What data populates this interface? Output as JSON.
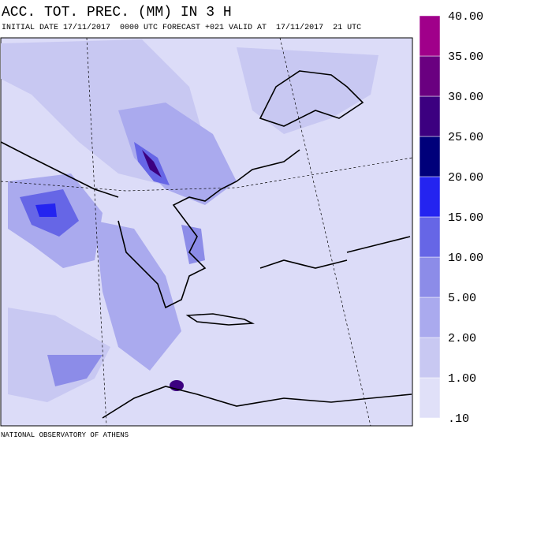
{
  "header": {
    "title": "ACC. TOT. PREC. (MM) IN 3 H",
    "subtitle": "INITIAL DATE 17/11/2017  0000 UTC FORECAST +021 VALID AT  17/11/2017  21 UTC"
  },
  "legend": {
    "levels": [
      ".10",
      "1.00",
      "2.00",
      "5.00",
      "10.00",
      "15.00",
      "20.00",
      "25.00",
      "30.00",
      "35.00",
      "40.00"
    ],
    "colors": [
      "#e0e0f8",
      "#c8c8f2",
      "#aaaaee",
      "#8c8ce8",
      "#6666e6",
      "#2424f0",
      "#00007a",
      "#3c0080",
      "#6a0080",
      "#a0008a"
    ]
  },
  "footer": "NATIONAL OBSERVATORY OF ATHENS"
}
